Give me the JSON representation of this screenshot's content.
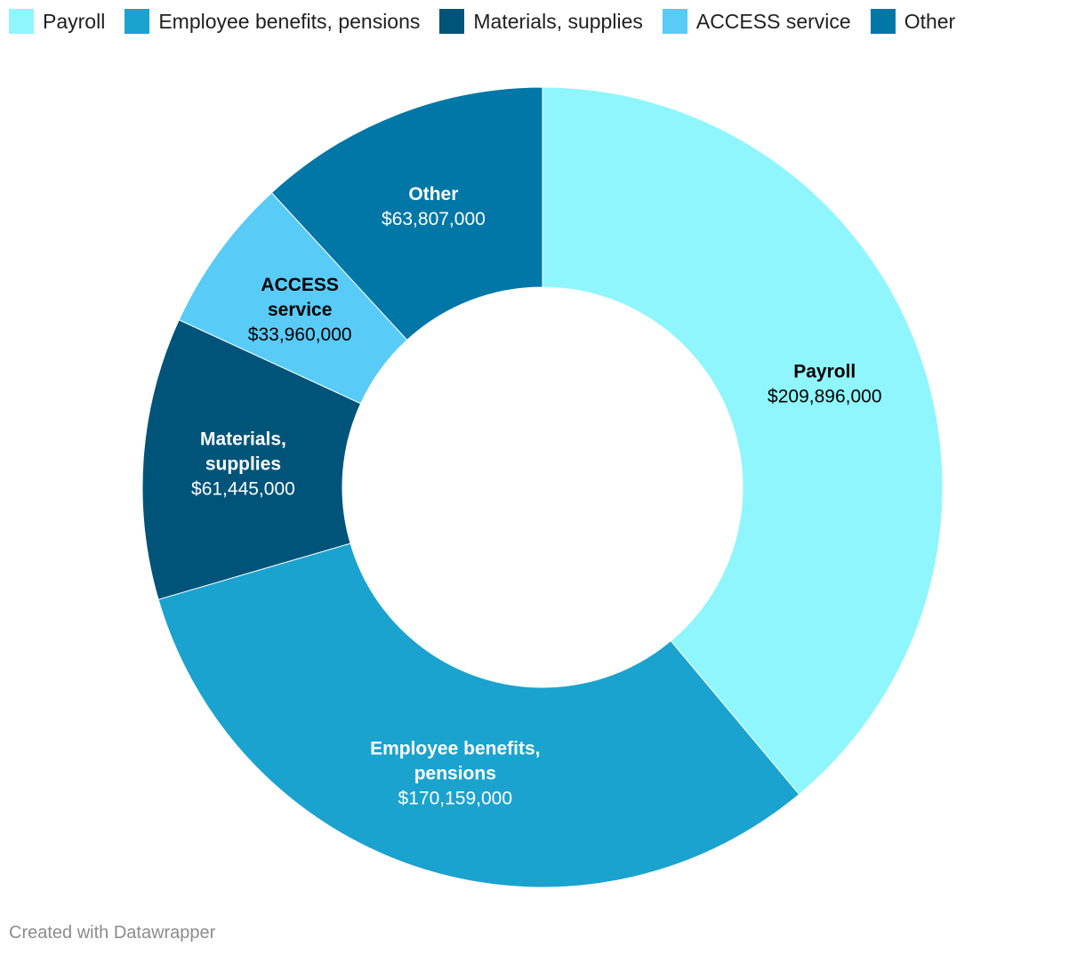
{
  "chart_data": {
    "type": "pie",
    "variant": "donut",
    "legend_position": "top-left",
    "categories": [
      "Payroll",
      "Employee benefits, pensions",
      "Materials, supplies",
      "ACCESS service",
      "Other"
    ],
    "values": [
      209896000,
      170159000,
      61445000,
      33960000,
      63807000
    ],
    "value_labels": [
      "$209,896,000",
      "$170,159,000",
      "$61,445,000",
      "$33,960,000",
      "$63,807,000"
    ],
    "slice_label_lines": [
      [
        "Payroll"
      ],
      [
        "Employee benefits,",
        "pensions"
      ],
      [
        "Materials,",
        "supplies"
      ],
      [
        "ACCESS",
        "service"
      ],
      [
        "Other"
      ]
    ],
    "colors": [
      "#8ef6fc",
      "#1aa3cf",
      "#005479",
      "#58cbf7",
      "#0077a6"
    ],
    "label_colors": [
      "#000000",
      "#ffffff",
      "#ffffff",
      "#000000",
      "#ffffff"
    ]
  },
  "legend": {
    "items": [
      {
        "label": "Payroll",
        "color": "#8ef6fc"
      },
      {
        "label": "Employee benefits, pensions",
        "color": "#1aa3cf"
      },
      {
        "label": "Materials, supplies",
        "color": "#005479"
      },
      {
        "label": "ACCESS service",
        "color": "#58cbf7"
      },
      {
        "label": "Other",
        "color": "#0077a6"
      }
    ]
  },
  "footer": {
    "credit": "Created with Datawrapper"
  }
}
